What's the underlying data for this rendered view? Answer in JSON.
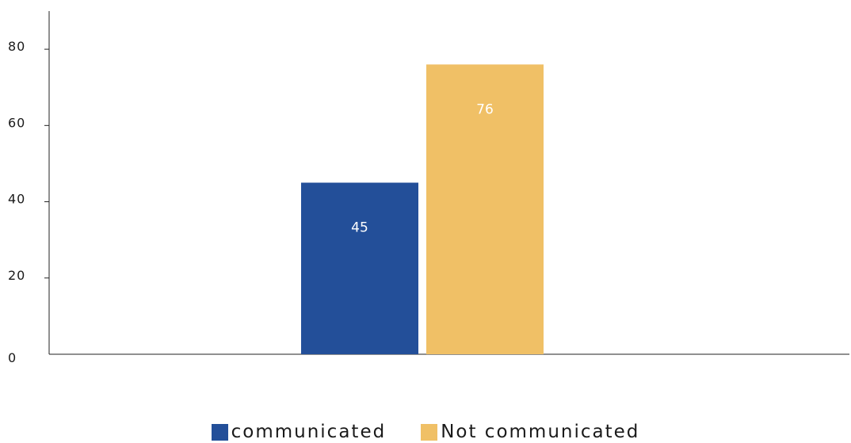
{
  "chart_data": {
    "type": "bar",
    "categories": [
      ""
    ],
    "series": [
      {
        "name": "communicated",
        "values": [
          45
        ],
        "color": "#234f99"
      },
      {
        "name": "Not communicated",
        "values": [
          76
        ],
        "color": "#f0c066"
      }
    ],
    "data_labels": [
      "45",
      "76"
    ],
    "title": "",
    "xlabel": "",
    "ylabel": "",
    "ylim": [
      0,
      90
    ],
    "yticks": [
      0,
      20,
      40,
      60,
      80
    ],
    "ytick_labels": [
      "0",
      "20",
      "40",
      "60",
      "80"
    ],
    "grid": false,
    "legend_position": "bottom-center"
  }
}
